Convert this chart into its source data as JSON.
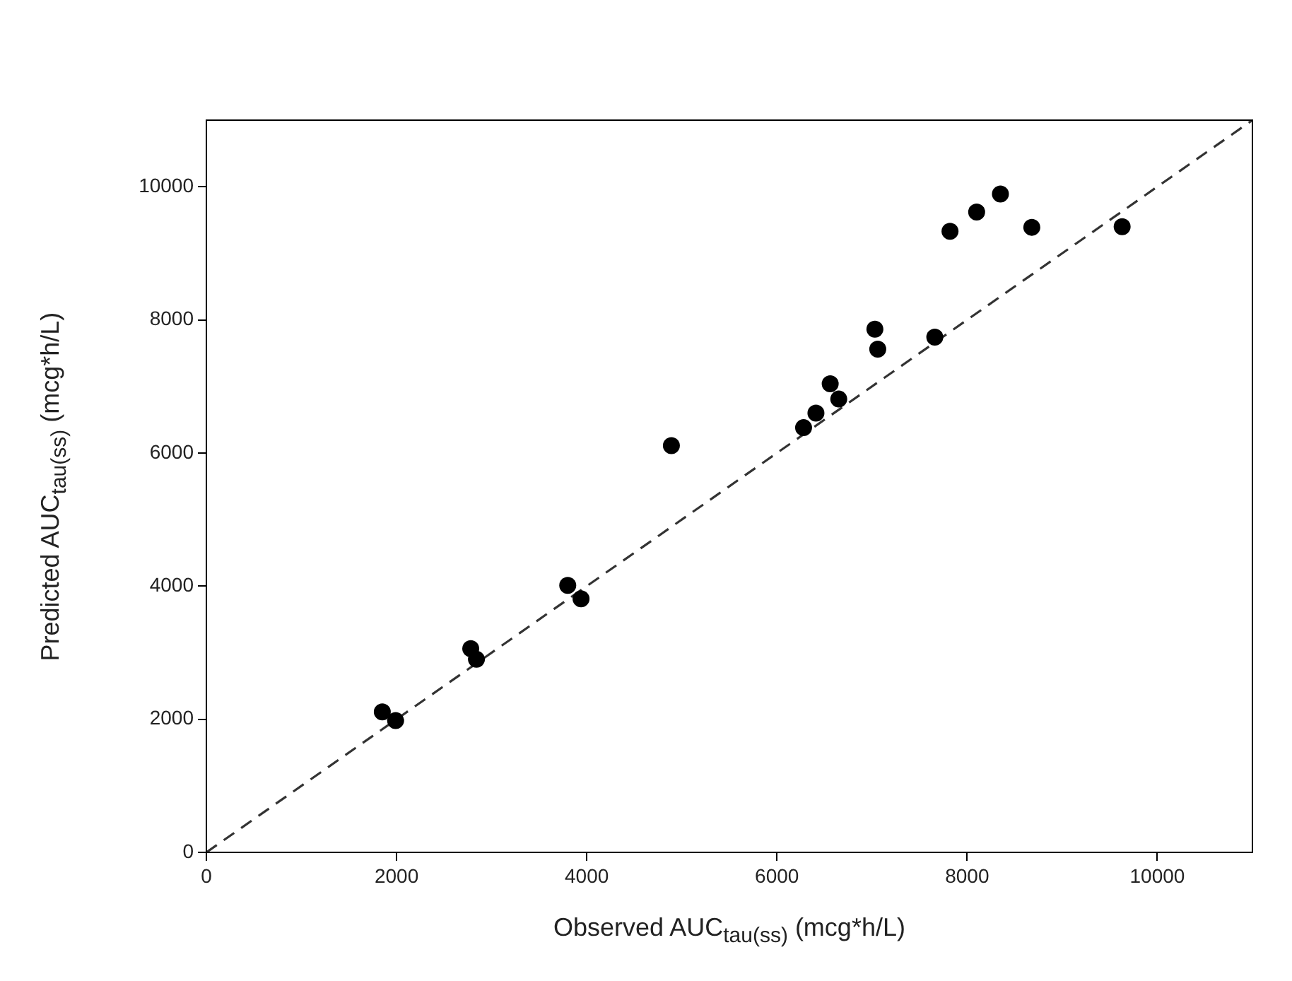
{
  "chart_data": {
    "type": "scatter",
    "xlabel": "Observed AUC$_{tau(ss)}$ (mcg*h/L)",
    "ylabel": "Predicted AUC$_{tau(ss)}$ (mcg*h/L)",
    "xlim": [
      0,
      11000
    ],
    "ylim": [
      0,
      11000
    ],
    "xticks": [
      0,
      2000,
      4000,
      6000,
      8000,
      10000
    ],
    "yticks": [
      0,
      2000,
      4000,
      6000,
      8000,
      10000
    ],
    "grid": false,
    "legend": false,
    "marker": "circle",
    "series": [
      {
        "color": "#000000",
        "x": [
          1850,
          1990,
          2780,
          2840,
          3800,
          3940,
          4890,
          6280,
          6410,
          6560,
          6650,
          7030,
          7060,
          7660,
          7820,
          8100,
          8350,
          8680,
          9630
        ],
        "values": [
          2110,
          1980,
          3060,
          2900,
          4010,
          3810,
          6110,
          6380,
          6600,
          7040,
          6810,
          7860,
          7560,
          7740,
          9330,
          9620,
          9890,
          9390,
          9400
        ]
      },
      {
        "type": "line",
        "color": "#333333",
        "line_style": "dashed",
        "marker": "none",
        "x": [
          0,
          11000
        ],
        "values": [
          0,
          11000
        ]
      }
    ]
  }
}
